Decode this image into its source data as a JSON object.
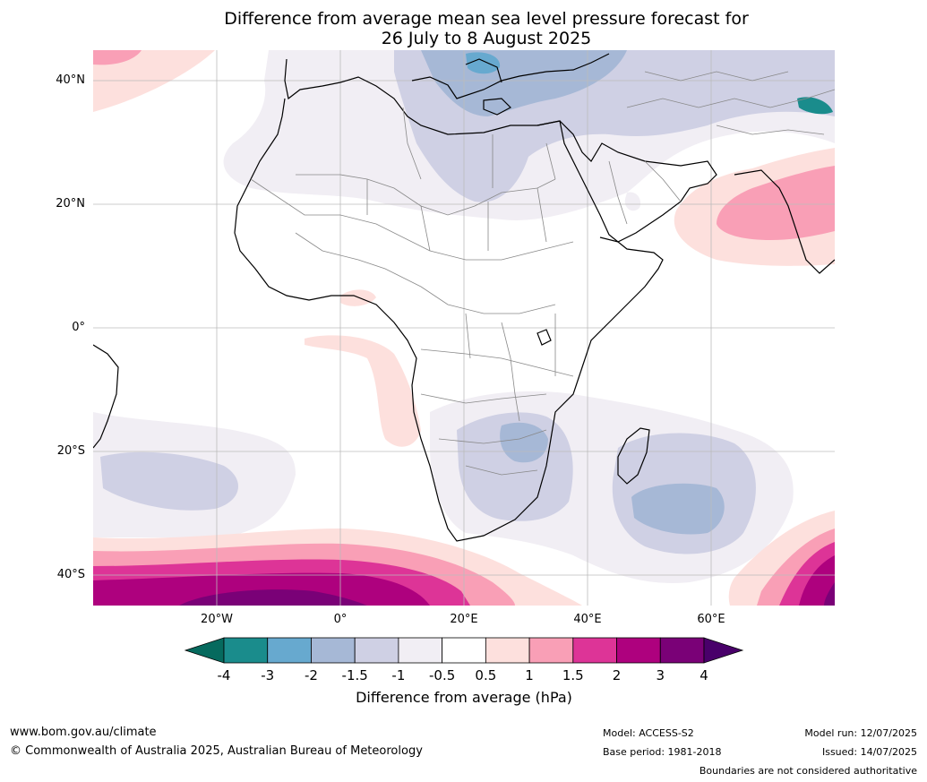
{
  "title_line1": "Difference from average mean sea level pressure forecast for",
  "title_line2": "26 July to 8 August 2025",
  "map": {
    "lat_labels": [
      "40°N",
      "20°N",
      "0°",
      "20°S",
      "40°S"
    ],
    "lon_labels": [
      "20°W",
      "0°",
      "20°E",
      "40°E",
      "60°E"
    ]
  },
  "colorbar": {
    "title": "Difference from average (hPa)",
    "ticks": [
      "-4",
      "-3",
      "-2",
      "-1.5",
      "-1",
      "-0.5",
      "0.5",
      "1",
      "1.5",
      "2",
      "3",
      "4"
    ],
    "colors": [
      "#1a8c8c",
      "#67a9cf",
      "#a6b8d6",
      "#cfd0e4",
      "#f1eef4",
      "#ffffff",
      "#fde0dd",
      "#f99fb6",
      "#dd3497",
      "#ae017e",
      "#7a0177"
    ],
    "under_color": "#066a5e",
    "over_color": "#49006a"
  },
  "footer": {
    "url": "www.bom.gov.au/climate",
    "copyright": "© Commonwealth of Australia 2025, Australian Bureau of Meteorology",
    "model": "Model: ACCESS-S2",
    "base_period": "Base period: 1981-2018",
    "model_run": "Model run: 12/07/2025",
    "issued": "Issued: 14/07/2025",
    "disclaimer": "Boundaries are not considered authoritative"
  }
}
